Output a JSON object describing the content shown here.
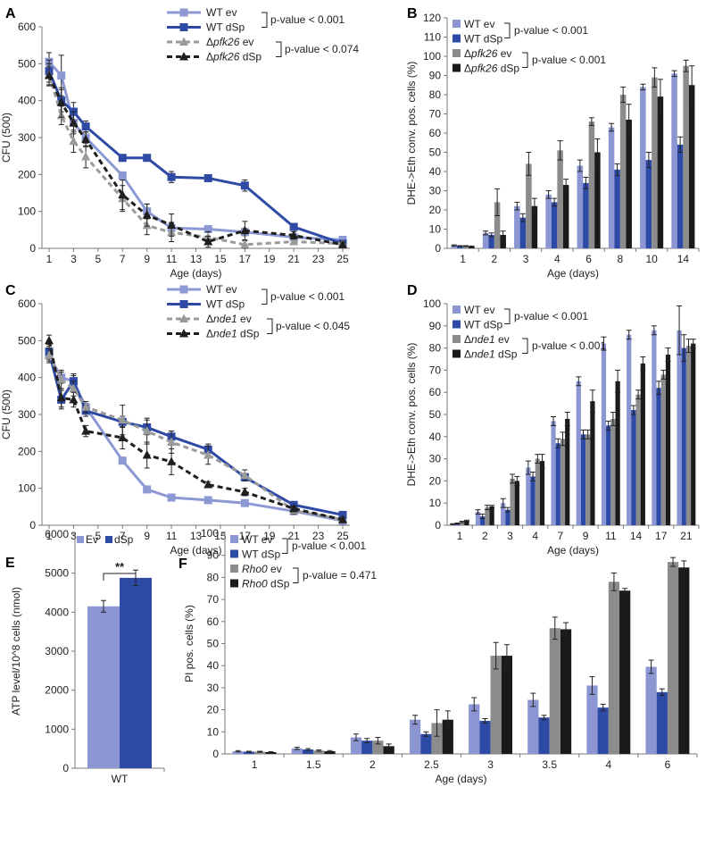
{
  "figure": {
    "colors": {
      "wt_ev": "#8b96d2",
      "wt_dsp": "#2e4aa7",
      "mut_ev": "#8c8c8c",
      "mut_dsp": "#1a1a1a",
      "line_wt_ev": "#8d99d3",
      "line_wt_dsp": "#2e4aa5",
      "line_mut_ev": "#9a9a9a",
      "line_mut_dsp": "#1f1f1f"
    }
  },
  "chart_data": [
    {
      "panel": "A",
      "type": "line",
      "ylabel": "CFU (500)",
      "xlabel": "Age (days)",
      "ylim": [
        0,
        600
      ],
      "yticks": [
        0,
        100,
        200,
        300,
        400,
        500,
        600
      ],
      "xlim": [
        1,
        25
      ],
      "xticks": [
        1,
        3,
        5,
        7,
        9,
        11,
        13,
        15,
        17,
        19,
        21,
        23,
        25
      ],
      "legend": [
        {
          "label": "WT ev",
          "prefix": "",
          "italic": "",
          "suffix": ""
        },
        {
          "label": "WT dSp",
          "prefix": "",
          "italic": "",
          "suffix": ""
        },
        {
          "label": "Δpfk26 ev",
          "prefix": "Δ",
          "italic": "pfk26",
          "suffix": " ev"
        },
        {
          "label": "Δpfk26 dSp",
          "prefix": "Δ",
          "italic": "pfk26",
          "suffix": " dSp"
        }
      ],
      "pvalues": [
        "p-value < 0.001",
        "p-value < 0.074"
      ],
      "series": [
        {
          "name": "WT ev",
          "x": [
            1,
            2,
            3,
            4,
            7,
            9,
            11,
            14,
            17,
            21,
            25
          ],
          "y": [
            505,
            468,
            340,
            300,
            197,
            100,
            55,
            52,
            44,
            30,
            23
          ],
          "err": [
            25,
            55,
            25,
            15,
            10,
            20,
            15,
            8,
            10,
            5,
            5
          ]
        },
        {
          "name": "WT dSp",
          "x": [
            1,
            2,
            3,
            4,
            7,
            9,
            11,
            14,
            17,
            21,
            25
          ],
          "y": [
            480,
            400,
            370,
            330,
            245,
            245,
            193,
            190,
            170,
            58,
            13
          ],
          "err": [
            30,
            30,
            25,
            15,
            8,
            8,
            15,
            8,
            15,
            8,
            5
          ]
        },
        {
          "name": "Δpfk26 ev",
          "x": [
            1,
            2,
            3,
            4,
            7,
            9,
            11,
            14,
            17,
            21,
            25
          ],
          "y": [
            470,
            360,
            290,
            248,
            135,
            62,
            43,
            30,
            10,
            18,
            13
          ],
          "err": [
            30,
            25,
            30,
            30,
            35,
            25,
            25,
            15,
            10,
            8,
            5
          ]
        },
        {
          "name": "Δpfk26 dSp",
          "x": [
            1,
            2,
            3,
            4,
            7,
            9,
            11,
            14,
            17,
            21,
            25
          ],
          "y": [
            468,
            395,
            340,
            295,
            145,
            90,
            63,
            18,
            48,
            35,
            10
          ],
          "err": [
            25,
            40,
            30,
            20,
            40,
            30,
            30,
            15,
            25,
            10,
            5
          ]
        }
      ]
    },
    {
      "panel": "B",
      "type": "bar",
      "ylabel": "DHE->Eth conv. pos. cells (%)",
      "xlabel": "Age (days)",
      "ylim": [
        0,
        120
      ],
      "yticks": [
        0,
        10,
        20,
        30,
        40,
        50,
        60,
        70,
        80,
        90,
        100,
        110,
        120
      ],
      "categories": [
        "1",
        "2",
        "3",
        "4",
        "6",
        "8",
        "10",
        "14"
      ],
      "legend": [
        {
          "label": "WT ev",
          "prefix": "",
          "italic": "",
          "suffix": ""
        },
        {
          "label": "WT dSp",
          "prefix": "",
          "italic": "",
          "suffix": ""
        },
        {
          "label": "Δpfk26 ev",
          "prefix": "Δ",
          "italic": "pfk26",
          "suffix": " ev"
        },
        {
          "label": "Δpfk26 dSp",
          "prefix": "Δ",
          "italic": "pfk26",
          "suffix": " dSp"
        }
      ],
      "pvalues": [
        "p-value < 0.001",
        "p-value < 0.001"
      ],
      "series": [
        {
          "name": "WT ev",
          "values": [
            1.5,
            8,
            22,
            28,
            43,
            63,
            84,
            91
          ],
          "err": [
            0.3,
            1,
            2,
            2,
            3,
            2,
            1.5,
            1.5
          ]
        },
        {
          "name": "WT dSp",
          "values": [
            1.2,
            7,
            16,
            24,
            34,
            41,
            46,
            54
          ],
          "err": [
            0.2,
            1,
            2,
            2,
            3,
            3,
            4,
            4
          ]
        },
        {
          "name": "Δpfk26 ev",
          "values": [
            1.2,
            24,
            44,
            51,
            66,
            80,
            89,
            95
          ],
          "err": [
            0.2,
            7,
            6,
            5,
            2,
            4,
            5,
            3
          ]
        },
        {
          "name": "Δpfk26 dSp",
          "values": [
            1,
            7,
            22,
            33,
            50,
            67,
            79,
            85
          ],
          "err": [
            0.2,
            2,
            4,
            3,
            7,
            8,
            9,
            10
          ]
        }
      ]
    },
    {
      "panel": "C",
      "type": "line",
      "ylabel": "CFU (500)",
      "xlabel": "Age (days)",
      "ylim": [
        0,
        600
      ],
      "yticks": [
        0,
        100,
        200,
        300,
        400,
        500,
        600
      ],
      "xlim": [
        1,
        25
      ],
      "xticks": [
        1,
        3,
        5,
        7,
        9,
        11,
        13,
        15,
        17,
        19,
        21,
        23,
        25
      ],
      "legend": [
        {
          "label": "WT ev",
          "prefix": "",
          "italic": "",
          "suffix": ""
        },
        {
          "label": "WT dSp",
          "prefix": "",
          "italic": "",
          "suffix": ""
        },
        {
          "label": "Δnde1 ev",
          "prefix": "Δ",
          "italic": "nde1",
          "suffix": " ev"
        },
        {
          "label": "Δnde1 dSp",
          "prefix": "Δ",
          "italic": "nde1",
          "suffix": " dSp"
        }
      ],
      "pvalues": [
        "p-value < 0.001",
        "p-value < 0.045"
      ],
      "series": [
        {
          "name": "WT ev",
          "x": [
            1,
            2,
            3,
            4,
            7,
            9,
            11,
            14,
            17,
            21,
            25
          ],
          "y": [
            460,
            400,
            390,
            320,
            175,
            97,
            75,
            68,
            60,
            38,
            12
          ],
          "err": [
            15,
            15,
            15,
            10,
            8,
            5,
            5,
            5,
            5,
            5,
            3
          ]
        },
        {
          "name": "WT dSp",
          "x": [
            1,
            2,
            3,
            4,
            7,
            9,
            11,
            14,
            17,
            21,
            25
          ],
          "y": [
            470,
            340,
            390,
            310,
            280,
            265,
            240,
            205,
            130,
            55,
            28
          ],
          "err": [
            20,
            25,
            20,
            15,
            15,
            20,
            15,
            15,
            10,
            8,
            5
          ]
        },
        {
          "name": "Δnde1 ev",
          "x": [
            1,
            2,
            3,
            4,
            7,
            9,
            11,
            14,
            17,
            21,
            25
          ],
          "y": [
            460,
            395,
            370,
            320,
            285,
            255,
            225,
            190,
            135,
            40,
            15
          ],
          "err": [
            20,
            25,
            20,
            15,
            40,
            35,
            30,
            25,
            15,
            10,
            5
          ]
        },
        {
          "name": "Δnde1 dSp",
          "x": [
            1,
            2,
            3,
            4,
            7,
            9,
            11,
            14,
            17,
            21,
            25
          ],
          "y": [
            500,
            345,
            340,
            255,
            237,
            190,
            172,
            110,
            90,
            45,
            15
          ],
          "err": [
            15,
            25,
            20,
            15,
            30,
            35,
            35,
            8,
            10,
            8,
            5
          ]
        }
      ]
    },
    {
      "panel": "D",
      "type": "bar",
      "ylabel": "DHE->Eth conv. pos. cells (%)",
      "xlabel": "Age (days)",
      "ylim": [
        0,
        100
      ],
      "yticks": [
        0,
        10,
        20,
        30,
        40,
        50,
        60,
        70,
        80,
        90,
        100
      ],
      "categories": [
        "1",
        "2",
        "3",
        "4",
        "7",
        "9",
        "11",
        "14",
        "17",
        "21"
      ],
      "legend": [
        {
          "label": "WT ev",
          "prefix": "",
          "italic": "",
          "suffix": ""
        },
        {
          "label": "WT dSp",
          "prefix": "",
          "italic": "",
          "suffix": ""
        },
        {
          "label": "Δnde1 ev",
          "prefix": "Δ",
          "italic": "nde1",
          "suffix": " ev"
        },
        {
          "label": "Δnde1 dSp",
          "prefix": "Δ",
          "italic": "nde1",
          "suffix": " dSp"
        }
      ],
      "pvalues": [
        "p-value < 0.001",
        "p-value < 0.001"
      ],
      "series": [
        {
          "name": "WT ev",
          "values": [
            0.5,
            6,
            10,
            26,
            47,
            65,
            82,
            86,
            88,
            88
          ],
          "err": [
            0.2,
            1,
            2,
            3,
            2,
            2,
            3,
            2,
            2,
            11
          ]
        },
        {
          "name": "WT dSp",
          "values": [
            0.8,
            4,
            7,
            22,
            37,
            41,
            45,
            52,
            62,
            80
          ],
          "err": [
            0.2,
            1,
            1,
            2,
            2,
            2,
            2,
            2,
            3,
            6
          ]
        },
        {
          "name": "Δnde1 ev",
          "values": [
            1.5,
            8,
            21,
            30,
            39,
            41,
            48,
            59,
            68,
            81
          ],
          "err": [
            0.3,
            1,
            2,
            2,
            3,
            2,
            3,
            2,
            2,
            3
          ]
        },
        {
          "name": "Δnde1 dSp",
          "values": [
            2,
            8.5,
            20,
            29,
            48,
            56,
            65,
            73,
            77,
            82
          ],
          "err": [
            0.3,
            0.5,
            2,
            3,
            3,
            5,
            5,
            3,
            3,
            2
          ]
        }
      ]
    },
    {
      "panel": "E",
      "type": "bar",
      "ylabel": "ATP level/10^8 cells (nmol)",
      "xlabel": "",
      "ylim": [
        0,
        6000
      ],
      "yticks": [
        0,
        1000,
        2000,
        3000,
        4000,
        5000,
        6000
      ],
      "categories": [
        "WT"
      ],
      "legend": [
        {
          "label": "Ev"
        },
        {
          "label": "dSp"
        }
      ],
      "significance": "**",
      "series": [
        {
          "name": "Ev",
          "values": [
            4150
          ],
          "err": [
            150
          ]
        },
        {
          "name": "dSp",
          "values": [
            4880
          ],
          "err": [
            200
          ]
        }
      ]
    },
    {
      "panel": "F",
      "type": "bar",
      "ylabel": "PI pos. cells (%)",
      "xlabel": "Age (days)",
      "ylim": [
        0,
        100
      ],
      "yticks": [
        0,
        10,
        20,
        30,
        40,
        50,
        60,
        70,
        80,
        90,
        100
      ],
      "categories": [
        "1",
        "1.5",
        "2",
        "2.5",
        "3",
        "3.5",
        "4",
        "6"
      ],
      "legend": [
        {
          "label": "WT ev",
          "prefix": "",
          "italic": "",
          "suffix": ""
        },
        {
          "label": "WT dSp",
          "prefix": "",
          "italic": "",
          "suffix": ""
        },
        {
          "label": "Rho0 ev",
          "prefix": "",
          "italic": "Rho0",
          "suffix": " ev"
        },
        {
          "label": "Rho0 dSp",
          "prefix": "",
          "italic": "Rho0",
          "suffix": " dSp"
        }
      ],
      "pvalues": [
        "p-value < 0.001",
        "p-value = 0.471"
      ],
      "series": [
        {
          "name": "WT ev",
          "values": [
            1.2,
            2.5,
            7.5,
            15.5,
            22.5,
            24.5,
            31,
            39.5
          ],
          "err": [
            0.3,
            0.5,
            1.5,
            2,
            3,
            3,
            4,
            3
          ]
        },
        {
          "name": "WT dSp",
          "values": [
            1,
            2,
            6,
            9,
            15,
            16.5,
            21,
            28
          ],
          "err": [
            0.2,
            0.4,
            1,
            1,
            1,
            1,
            1.5,
            1.5
          ]
        },
        {
          "name": "Rho0 ev",
          "values": [
            1,
            1.5,
            6,
            14,
            44.5,
            57,
            78,
            87
          ],
          "err": [
            0.2,
            0.3,
            1.5,
            6,
            6,
            5,
            4,
            2
          ]
        },
        {
          "name": "Rho0 dSp",
          "values": [
            0.8,
            1.2,
            3.5,
            15.5,
            44.5,
            56.5,
            74,
            84.5
          ],
          "err": [
            0.2,
            0.3,
            1,
            4,
            5,
            3,
            1,
            3
          ]
        }
      ]
    }
  ]
}
